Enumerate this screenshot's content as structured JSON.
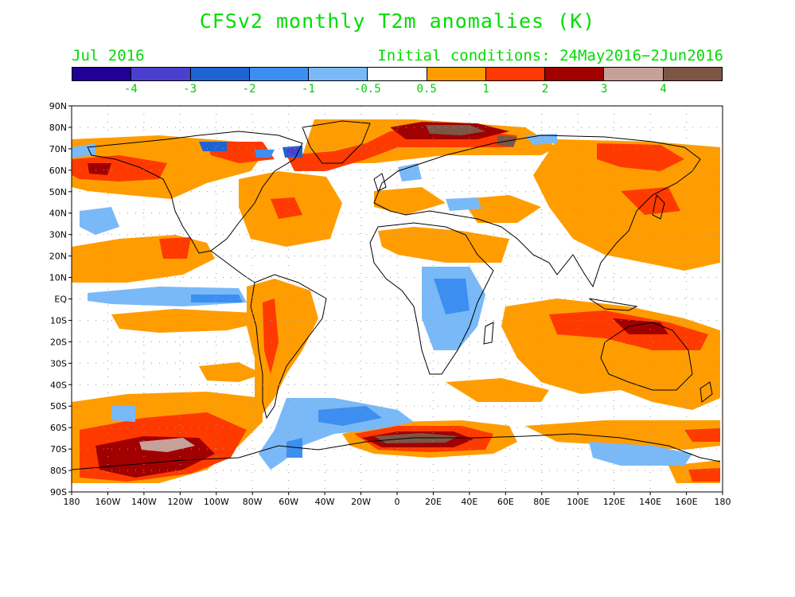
{
  "title": "CFSv2 monthly T2m anomalies (K)",
  "period": "Jul 2016",
  "initial_conditions": "Initial conditions: 24May2016−2Jun2016",
  "colorbar": {
    "colors": [
      "#200096",
      "#4b3fd0",
      "#1f64d2",
      "#3c8ff0",
      "#7ab9f8",
      "#ffffff",
      "#ff9d00",
      "#ff3a00",
      "#a10000",
      "#c8a09a",
      "#7d5545"
    ],
    "labels": [
      "-4",
      "-3",
      "-2",
      "-1",
      "-0.5",
      "0.5",
      "1",
      "2",
      "3",
      "4"
    ]
  },
  "axes": {
    "lat_labels": [
      "90N",
      "80N",
      "70N",
      "60N",
      "50N",
      "40N",
      "30N",
      "20N",
      "10N",
      "EQ",
      "10S",
      "20S",
      "30S",
      "40S",
      "50S",
      "60S",
      "70S",
      "80S",
      "90S"
    ],
    "lon_labels": [
      "180",
      "160W",
      "140W",
      "120W",
      "100W",
      "80W",
      "60W",
      "40W",
      "20W",
      "0",
      "20E",
      "40E",
      "60E",
      "80E",
      "100E",
      "120E",
      "140E",
      "160E",
      "180"
    ]
  }
}
